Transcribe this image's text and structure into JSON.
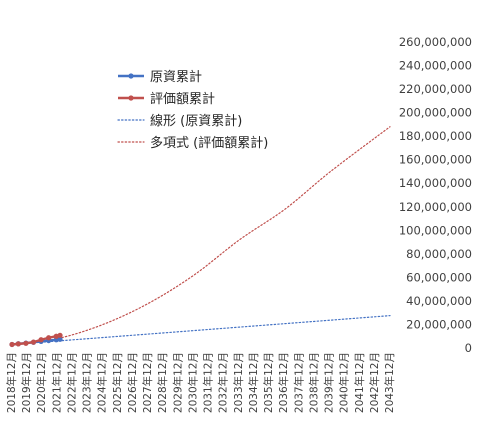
{
  "chart_data": {
    "type": "line",
    "x_unit": "month",
    "x_start": "2019-01",
    "x_end": "2043-12",
    "x_tick_labels": [
      "2018年12月",
      "2019年12月",
      "2020年12月",
      "2021年12月",
      "2022年12月",
      "2023年12月",
      "2024年12月",
      "2025年12月",
      "2026年12月",
      "2027年12月",
      "2028年12月",
      "2029年12月",
      "2030年12月",
      "2031年12月",
      "2032年12月",
      "2033年12月",
      "2034年12月",
      "2035年12月",
      "2036年12月",
      "2037年12月",
      "2038年12月",
      "2039年12月",
      "2040年12月",
      "2041年12月",
      "2042年12月",
      "2043年12月"
    ],
    "y_tick_labels": [
      "0",
      "20,000,000",
      "40,000,000",
      "60,000,000",
      "80,000,000",
      "100,000,000",
      "120,000,000",
      "140,000,000",
      "160,000,000",
      "180,000,000",
      "200,000,000",
      "220,000,000",
      "240,000,000",
      "260,000,000"
    ],
    "ylim": [
      0,
      260000000
    ],
    "y_axis_side": "right",
    "grid": false,
    "legend_position": "top-center",
    "series": [
      {
        "name": "原資累計",
        "color": "#4472C4",
        "style": "line-markers",
        "x": [
          "2019-01",
          "2019-06",
          "2019-12",
          "2020-06",
          "2020-12",
          "2021-06",
          "2021-12",
          "2022-03"
        ],
        "values": [
          3000000,
          3600000,
          4200000,
          4900000,
          5600000,
          6300000,
          7000000,
          7400000
        ]
      },
      {
        "name": "評価額累計",
        "color": "#C0504D",
        "style": "line-markers",
        "x": [
          "2019-01",
          "2019-06",
          "2019-12",
          "2020-06",
          "2020-12",
          "2021-06",
          "2021-12",
          "2022-03"
        ],
        "values": [
          3000000,
          3500000,
          4000000,
          5000000,
          7000000,
          8700000,
          10000000,
          10800000
        ]
      },
      {
        "name": "線形 (原資累計)",
        "color": "#4472C4",
        "style": "dotted",
        "x": [
          "2019-01",
          "2043-12"
        ],
        "values": [
          3000000,
          27500000
        ]
      },
      {
        "name": "多項式 (評価額累計)",
        "color": "#C0504D",
        "style": "dotted",
        "x": [
          "2019-01",
          "2022-01",
          "2025-01",
          "2028-01",
          "2031-01",
          "2034-01",
          "2037-01",
          "2040-01",
          "2043-12"
        ],
        "values": [
          3000000,
          8000000,
          20000000,
          38000000,
          62000000,
          92000000,
          118000000,
          150000000,
          188000000
        ]
      }
    ]
  }
}
